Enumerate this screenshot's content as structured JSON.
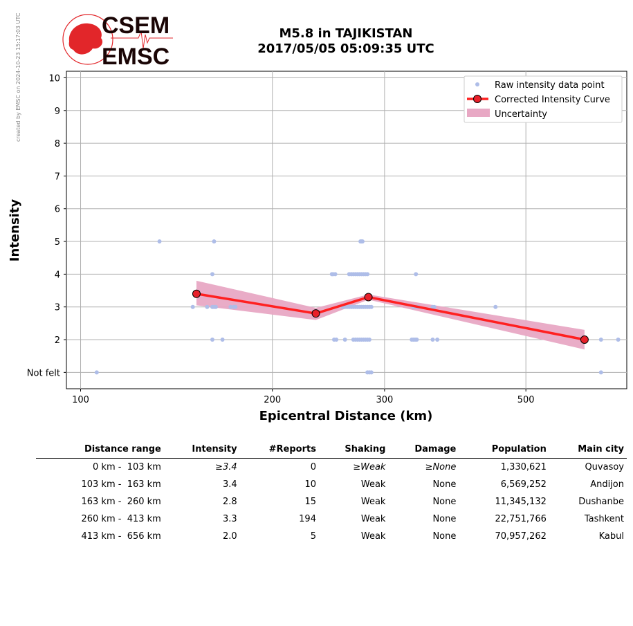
{
  "credit": "created by EMSC on 2024-10-23 15:17:03 UTC",
  "logo": {
    "line1": "CSEM",
    "line2": "EMSC",
    "color": "#e2262a"
  },
  "title": {
    "line1": "M5.8 in TAJIKISTAN",
    "line2": "2017/05/05 05:09:35 UTC"
  },
  "colors": {
    "raw": "#aebde8",
    "curve": "#ff2020",
    "marker": "#e8202a",
    "band": "#e8a8c4",
    "grid": "#b0b0b0"
  },
  "chart_data": {
    "type": "scatter",
    "xlabel": "Epicentral Distance (km)",
    "ylabel": "Intensity",
    "xscale": "log",
    "xlim": [
      95,
      720
    ],
    "ylim": [
      0.5,
      10.2
    ],
    "xticks": [
      100,
      200,
      300,
      500
    ],
    "ytick_labels": [
      "Not felt",
      "2",
      "3",
      "4",
      "5",
      "6",
      "7",
      "8",
      "9",
      "10"
    ],
    "ytick_values": [
      1,
      2,
      3,
      4,
      5,
      6,
      7,
      8,
      9,
      10
    ],
    "grid": true,
    "legend_position": "top-right",
    "legend": [
      "Raw intensity data point",
      "Corrected Intensity Curve",
      "Uncertainty"
    ],
    "raw_points": [
      [
        106,
        1
      ],
      [
        133,
        5
      ],
      [
        162,
        5
      ],
      [
        161,
        4
      ],
      [
        150,
        3
      ],
      [
        158,
        3
      ],
      [
        161,
        3
      ],
      [
        162,
        3
      ],
      [
        163,
        3
      ],
      [
        172,
        3
      ],
      [
        174,
        3
      ],
      [
        175,
        3
      ],
      [
        161,
        2
      ],
      [
        167,
        2
      ],
      [
        275,
        5
      ],
      [
        276,
        5
      ],
      [
        277,
        5
      ],
      [
        248,
        4
      ],
      [
        249,
        4
      ],
      [
        251,
        4
      ],
      [
        264,
        4
      ],
      [
        266,
        4
      ],
      [
        268,
        4
      ],
      [
        270,
        4
      ],
      [
        272,
        4
      ],
      [
        274,
        4
      ],
      [
        276,
        4
      ],
      [
        278,
        4
      ],
      [
        280,
        4
      ],
      [
        282,
        4
      ],
      [
        336,
        4
      ],
      [
        258,
        3
      ],
      [
        260,
        3
      ],
      [
        262,
        3
      ],
      [
        264,
        3
      ],
      [
        266,
        3
      ],
      [
        268,
        3
      ],
      [
        270,
        3
      ],
      [
        272,
        3
      ],
      [
        274,
        3
      ],
      [
        276,
        3
      ],
      [
        278,
        3
      ],
      [
        280,
        3
      ],
      [
        282,
        3
      ],
      [
        284,
        3
      ],
      [
        286,
        3
      ],
      [
        333,
        3
      ],
      [
        336,
        3
      ],
      [
        339,
        3
      ],
      [
        357,
        3
      ],
      [
        359,
        3
      ],
      [
        448,
        3
      ],
      [
        250,
        2
      ],
      [
        252,
        2
      ],
      [
        260,
        2
      ],
      [
        268,
        2
      ],
      [
        270,
        2
      ],
      [
        272,
        2
      ],
      [
        274,
        2
      ],
      [
        276,
        2
      ],
      [
        278,
        2
      ],
      [
        280,
        2
      ],
      [
        282,
        2
      ],
      [
        284,
        2
      ],
      [
        331,
        2
      ],
      [
        333,
        2
      ],
      [
        335,
        2
      ],
      [
        337,
        2
      ],
      [
        357,
        2
      ],
      [
        363,
        2
      ],
      [
        656,
        2
      ],
      [
        698,
        2
      ],
      [
        282,
        1
      ],
      [
        284,
        1
      ],
      [
        286,
        1
      ],
      [
        656,
        1
      ]
    ],
    "series": [
      {
        "name": "Corrected Intensity Curve",
        "x": [
          152,
          234,
          283,
          618
        ],
        "y": [
          3.4,
          2.8,
          3.3,
          2.0
        ]
      }
    ],
    "uncertainty": {
      "x": [
        152,
        234,
        283,
        618
      ],
      "upper": [
        3.8,
        2.97,
        3.38,
        2.3
      ],
      "lower": [
        3.05,
        2.6,
        3.22,
        1.7
      ]
    }
  },
  "table": {
    "headers": [
      "Distance range",
      "Intensity",
      "#Reports",
      "Shaking",
      "Damage",
      "Population",
      "Main city"
    ],
    "rows": [
      {
        "range": "0 km -  103 km",
        "intensity": "≥3.4",
        "reports": "0",
        "shaking": "≥Weak",
        "damage": "≥None",
        "population": "1,330,621",
        "city": "Quvasoy",
        "italic": true
      },
      {
        "range": "103 km -  163 km",
        "intensity": "3.4",
        "reports": "10",
        "shaking": "Weak",
        "damage": "None",
        "population": "6,569,252",
        "city": "Andijon",
        "italic": false
      },
      {
        "range": "163 km -  260 km",
        "intensity": "2.8",
        "reports": "15",
        "shaking": "Weak",
        "damage": "None",
        "population": "11,345,132",
        "city": "Dushanbe",
        "italic": false
      },
      {
        "range": "260 km -  413 km",
        "intensity": "3.3",
        "reports": "194",
        "shaking": "Weak",
        "damage": "None",
        "population": "22,751,766",
        "city": "Tashkent",
        "italic": false
      },
      {
        "range": "413 km -  656 km",
        "intensity": "2.0",
        "reports": "5",
        "shaking": "Weak",
        "damage": "None",
        "population": "70,957,262",
        "city": "Kabul",
        "italic": false
      }
    ]
  }
}
